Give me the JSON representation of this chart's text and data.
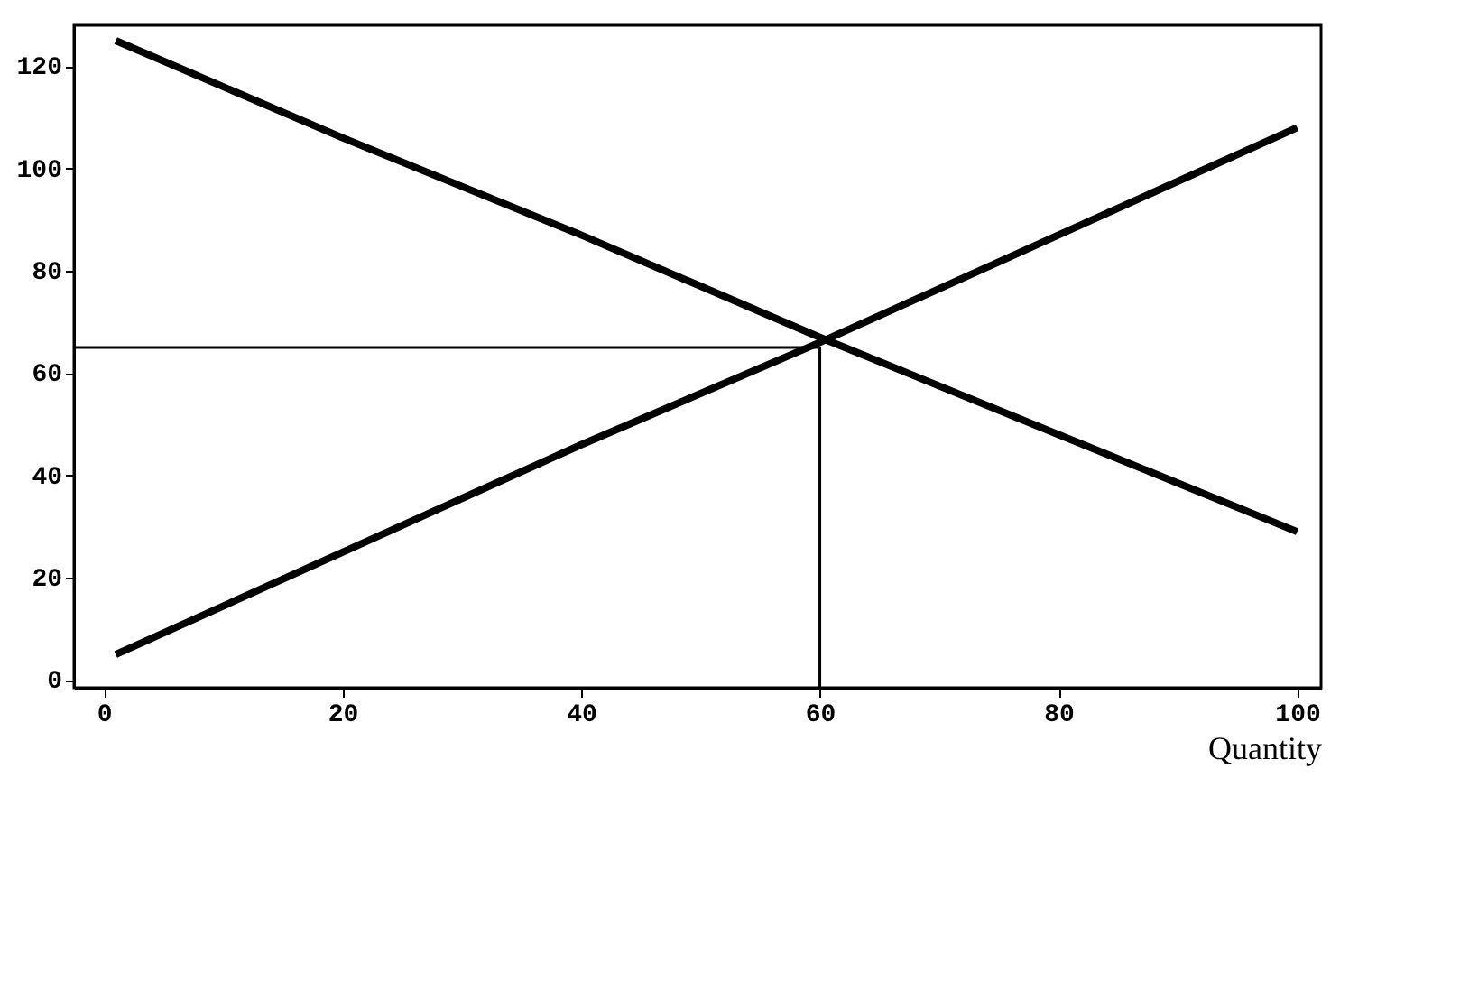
{
  "chart_data": {
    "type": "line",
    "xlabel": "Quantity",
    "x": [
      1,
      20,
      40,
      60,
      80,
      100
    ],
    "series": [
      {
        "color": "#000000",
        "values": [
          5,
          25,
          46,
          66,
          87,
          108
        ]
      },
      {
        "color": "#000000",
        "values": [
          125,
          106,
          87,
          67,
          48,
          29
        ]
      }
    ],
    "xlim": [
      -2.5,
      102
    ],
    "ylim": [
      -1.5,
      128
    ],
    "xticks": [
      0,
      20,
      40,
      60,
      80,
      100
    ],
    "yticks": [
      0,
      20,
      40,
      60,
      80,
      100,
      120
    ],
    "ref_lines": [
      {
        "axis": "y",
        "value": 65,
        "color": "#000000"
      },
      {
        "axis": "x",
        "value": 60,
        "color": "#000000"
      }
    ],
    "grid": false,
    "marker": "none",
    "line_style": "solid"
  }
}
